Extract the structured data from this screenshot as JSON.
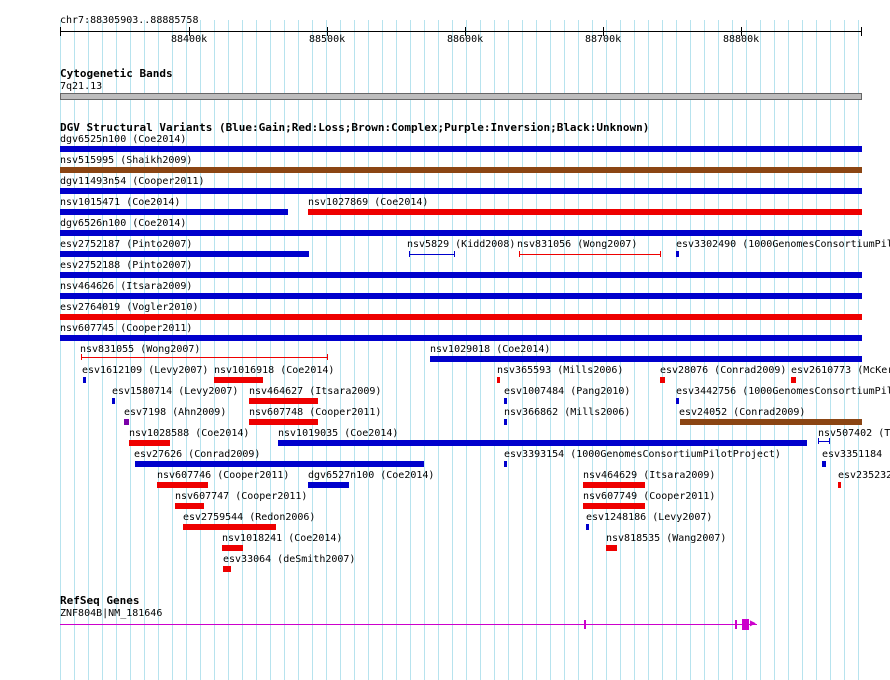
{
  "position_label": "chr7:88305903..88885758",
  "ruler_ticks": [
    "88400k",
    "88500k",
    "88600k",
    "88700k",
    "88800k"
  ],
  "cyto": {
    "title": "Cytogenetic Bands",
    "band": "7q21.13"
  },
  "dgv": {
    "title": "DGV Structural Variants (Blue:Gain;Red:Loss;Brown:Complex;Purple:Inversion;Black:Unknown)"
  },
  "colors": {
    "gain": "#0000cc",
    "loss": "#ee0000",
    "complex": "#8b4513",
    "inversion": "#7a00a8",
    "grid": "#b7e3ee",
    "gene": "#cc00cc"
  },
  "variants": [
    {
      "label": "dgv6525n100 (Coe2014)",
      "type": "gain"
    },
    {
      "label": "nsv515995 (Shaikh2009)",
      "type": "complex"
    },
    {
      "label": "dgv11493n54 (Cooper2011)",
      "type": "gain"
    },
    {
      "label": "nsv1015471 (Coe2014)",
      "type": "gain"
    },
    {
      "label": "nsv1027869 (Coe2014)",
      "type": "loss"
    },
    {
      "label": "dgv6526n100 (Coe2014)",
      "type": "gain"
    },
    {
      "label": "esv2752187 (Pinto2007)",
      "type": "gain"
    },
    {
      "label": "nsv5829 (Kidd2008)",
      "type": "gain",
      "style": "span"
    },
    {
      "label": "nsv831056 (Wong2007)",
      "type": "loss",
      "style": "span"
    },
    {
      "label": "esv3302490 (1000GenomesConsortiumPil",
      "type": "gain"
    },
    {
      "label": "esv2752188 (Pinto2007)",
      "type": "gain"
    },
    {
      "label": "nsv464626 (Itsara2009)",
      "type": "gain"
    },
    {
      "label": "esv2764019 (Vogler2010)",
      "type": "loss"
    },
    {
      "label": "nsv607745 (Cooper2011)",
      "type": "gain"
    },
    {
      "label": "nsv831055 (Wong2007)",
      "type": "loss",
      "style": "span"
    },
    {
      "label": "nsv1029018 (Coe2014)",
      "type": "gain"
    },
    {
      "label": "esv1612109 (Levy2007)",
      "type": "gain"
    },
    {
      "label": "nsv1016918 (Coe2014)",
      "type": "loss"
    },
    {
      "label": "nsv365593 (Mills2006)",
      "type": "loss"
    },
    {
      "label": "esv28076 (Conrad2009)",
      "type": "loss"
    },
    {
      "label": "esv2610773 (McKer",
      "type": "loss"
    },
    {
      "label": "esv1580714 (Levy2007)",
      "type": "gain"
    },
    {
      "label": "nsv464627 (Itsara2009)",
      "type": "loss"
    },
    {
      "label": "esv1007484 (Pang2010)",
      "type": "gain"
    },
    {
      "label": "esv3442756 (1000GenomesConsortiumPil",
      "type": "gain"
    },
    {
      "label": "esv7198 (Ahn2009)",
      "type": "inversion"
    },
    {
      "label": "nsv607748 (Cooper2011)",
      "type": "loss"
    },
    {
      "label": "nsv366862 (Mills2006)",
      "type": "gain"
    },
    {
      "label": "esv24052 (Conrad2009)",
      "type": "complex"
    },
    {
      "label": "nsv1028588 (Coe2014)",
      "type": "loss"
    },
    {
      "label": "nsv1019035 (Coe2014)",
      "type": "gain"
    },
    {
      "label": "nsv507402 (T",
      "type": "gain",
      "style": "span"
    },
    {
      "label": "esv27626 (Conrad2009)",
      "type": "gain"
    },
    {
      "label": "esv3393154 (1000GenomesConsortiumPilotProject)",
      "type": "gain"
    },
    {
      "label": "esv3351184",
      "type": "gain"
    },
    {
      "label": "nsv607746 (Cooper2011)",
      "type": "loss"
    },
    {
      "label": "dgv6527n100 (Coe2014)",
      "type": "gain"
    },
    {
      "label": "nsv464629 (Itsara2009)",
      "type": "loss"
    },
    {
      "label": "esv235232",
      "type": "loss"
    },
    {
      "label": "nsv607747 (Cooper2011)",
      "type": "loss"
    },
    {
      "label": "nsv607749 (Cooper2011)",
      "type": "loss"
    },
    {
      "label": "esv2759544 (Redon2006)",
      "type": "loss"
    },
    {
      "label": "esv1248186 (Levy2007)",
      "type": "gain"
    },
    {
      "label": "nsv1018241 (Coe2014)",
      "type": "loss"
    },
    {
      "label": "nsv818535 (Wang2007)",
      "type": "loss"
    },
    {
      "label": "esv33064 (deSmith2007)",
      "type": "loss"
    }
  ],
  "refseq": {
    "title": "RefSeq Genes",
    "gene_label": "ZNF804B|NM_181646"
  }
}
